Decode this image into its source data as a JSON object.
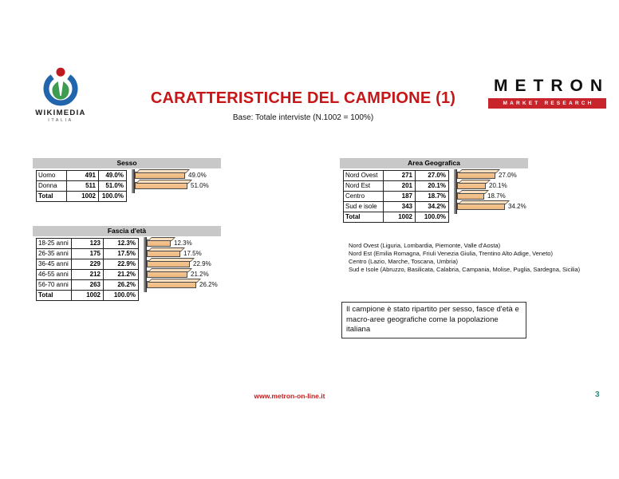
{
  "wikimedia": {
    "name": "WIKIMEDIA",
    "subtext": "ITALIA"
  },
  "header": {
    "title": "CARATTERISTICHE DEL CAMPIONE (1)",
    "subtitle": "Base: Totale interviste (N.1002 = 100%)"
  },
  "metron": {
    "name": "METRON",
    "tagline": "MARKET RESEARCH"
  },
  "colors": {
    "title_red": "#C51718",
    "table_header_gray": "#C8C8C8",
    "bar_fill": "#F6C795",
    "bar_top": "#FBDFBE",
    "bar_border": "#4A4A4A",
    "metron_red": "#C8242C",
    "footer_url_red": "#C21C1C",
    "page_number_teal": "#2F8C80",
    "wikimedia_blue": "#2165AC",
    "wikimedia_green": "#3E9B52",
    "wikimedia_red": "#BE1A20"
  },
  "chart_data": [
    {
      "type": "bar",
      "orientation": "horizontal",
      "title": "Sesso",
      "rows": [
        {
          "label": "Uomo",
          "count": "491",
          "pct": "49.0%",
          "value": 49.0
        },
        {
          "label": "Donna",
          "count": "511",
          "pct": "51.0%",
          "value": 51.0
        }
      ],
      "total": {
        "label": "Total",
        "count": "1002",
        "pct": "100.0%"
      },
      "data_labels": true,
      "axes_visible": false
    },
    {
      "type": "bar",
      "orientation": "horizontal",
      "title": "Fascia d'età",
      "rows": [
        {
          "label": "18-25 anni",
          "count": "123",
          "pct": "12.3%",
          "value": 12.3
        },
        {
          "label": "26-35 anni",
          "count": "175",
          "pct": "17.5%",
          "value": 17.5
        },
        {
          "label": "36-45 anni",
          "count": "229",
          "pct": "22.9%",
          "value": 22.9
        },
        {
          "label": "46-55 anni",
          "count": "212",
          "pct": "21.2%",
          "value": 21.2
        },
        {
          "label": "56-70 anni",
          "count": "263",
          "pct": "26.2%",
          "value": 26.2
        }
      ],
      "total": {
        "label": "Total",
        "count": "1002",
        "pct": "100.0%"
      },
      "data_labels": true,
      "axes_visible": false
    },
    {
      "type": "bar",
      "orientation": "horizontal",
      "title": "Area Geografica",
      "rows": [
        {
          "label": "Nord Ovest",
          "count": "271",
          "pct": "27.0%",
          "value": 27.0
        },
        {
          "label": "Nord Est",
          "count": "201",
          "pct": "20.1%",
          "value": 20.1
        },
        {
          "label": "Centro",
          "count": "187",
          "pct": "18.7%",
          "value": 18.7
        },
        {
          "label": "Sud e isole",
          "count": "343",
          "pct": "34.2%",
          "value": 34.2
        }
      ],
      "total": {
        "label": "Total",
        "count": "1002",
        "pct": "100.0%"
      },
      "data_labels": true,
      "axes_visible": false
    }
  ],
  "notes": [
    "Nord Ovest (Liguria, Lombardia, Piemonte, Valle d'Aosta)",
    "Nord Est (Emilia Romagna, Friuli Venezia Giulia, Trentino Alto Adige, Veneto)",
    "Centro (Lazio, Marche, Toscana, Umbria)",
    "Sud e Isole (Abruzzo, Basilicata, Calabria, Campania, Molise, Puglia, Sardegna, Sicilia)"
  ],
  "callout": {
    "text": "Il campione è stato ripartito per sesso, fasce d'età e macro-aree geografiche come la popolazione italiana"
  },
  "footer": {
    "url": "www.metron-on-line.it",
    "page": "3"
  }
}
